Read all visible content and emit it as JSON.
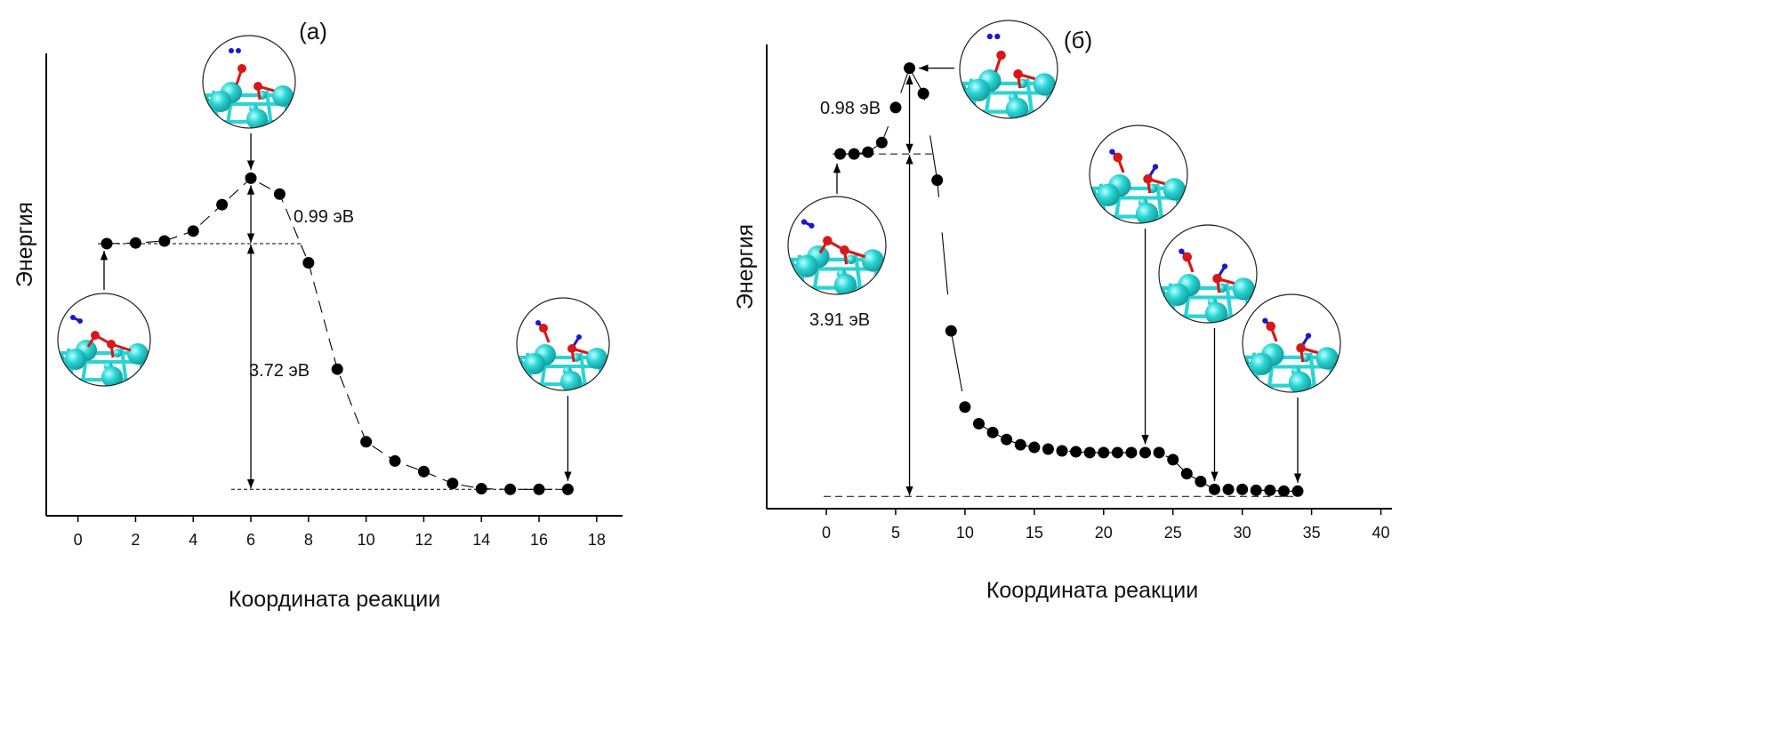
{
  "chart_data": [
    {
      "type": "scatter",
      "title": "(a)",
      "xlabel": "Координата реакции",
      "ylabel": "Энергия",
      "xlim": [
        -1.1,
        18.9
      ],
      "ylim": [
        -0.4,
        6.6
      ],
      "xticks": [
        0,
        2,
        4,
        6,
        8,
        10,
        12,
        14,
        16,
        18
      ],
      "grid": false,
      "x": [
        1,
        2,
        3,
        4,
        5,
        6,
        7,
        8,
        9,
        10,
        11,
        12,
        13,
        14,
        15,
        16,
        17
      ],
      "y": [
        3.72,
        3.73,
        3.76,
        3.91,
        4.31,
        4.71,
        4.47,
        3.43,
        1.82,
        0.72,
        0.43,
        0.27,
        0.09,
        0.01,
        0.0,
        0.0,
        0.0
      ],
      "y_units": "eV relative to final state (estimated)",
      "annotations": [
        "0.99 эВ",
        "3.72 эВ"
      ],
      "barrier_eV": 0.99,
      "reaction_energy_eV": 3.72
    },
    {
      "type": "scatter",
      "title": "(б)",
      "xlabel": "Координата реакции",
      "ylabel": "Энергия",
      "xlim": [
        -4.3,
        40.8
      ],
      "ylim": [
        -0.14,
        5.16
      ],
      "xticks": [
        0,
        5,
        10,
        15,
        20,
        25,
        30,
        35,
        40
      ],
      "grid": false,
      "x": [
        1,
        2,
        3,
        4,
        5,
        6,
        7,
        8,
        9,
        10,
        11,
        12,
        13,
        14,
        15,
        16,
        17,
        18,
        19,
        20,
        21,
        22,
        23,
        24,
        25,
        26,
        27,
        28,
        29,
        30,
        31,
        32,
        33,
        34
      ],
      "y": [
        3.91,
        3.91,
        3.93,
        4.04,
        4.44,
        4.89,
        4.6,
        3.61,
        1.89,
        1.02,
        0.83,
        0.73,
        0.65,
        0.59,
        0.56,
        0.54,
        0.52,
        0.51,
        0.5,
        0.5,
        0.5,
        0.5,
        0.5,
        0.5,
        0.42,
        0.26,
        0.17,
        0.08,
        0.08,
        0.08,
        0.07,
        0.07,
        0.06,
        0.06
      ],
      "y_units": "eV relative to final state (estimated)",
      "annotations": [
        "0.98 эВ",
        "3.91 эВ"
      ],
      "barrier_eV": 0.98,
      "reaction_energy_eV": 3.91
    }
  ],
  "colors": {
    "point": "#000000",
    "metal": "#2ad4d4",
    "oxygen": "#d81818",
    "hydrogen": "#1a1acc"
  }
}
